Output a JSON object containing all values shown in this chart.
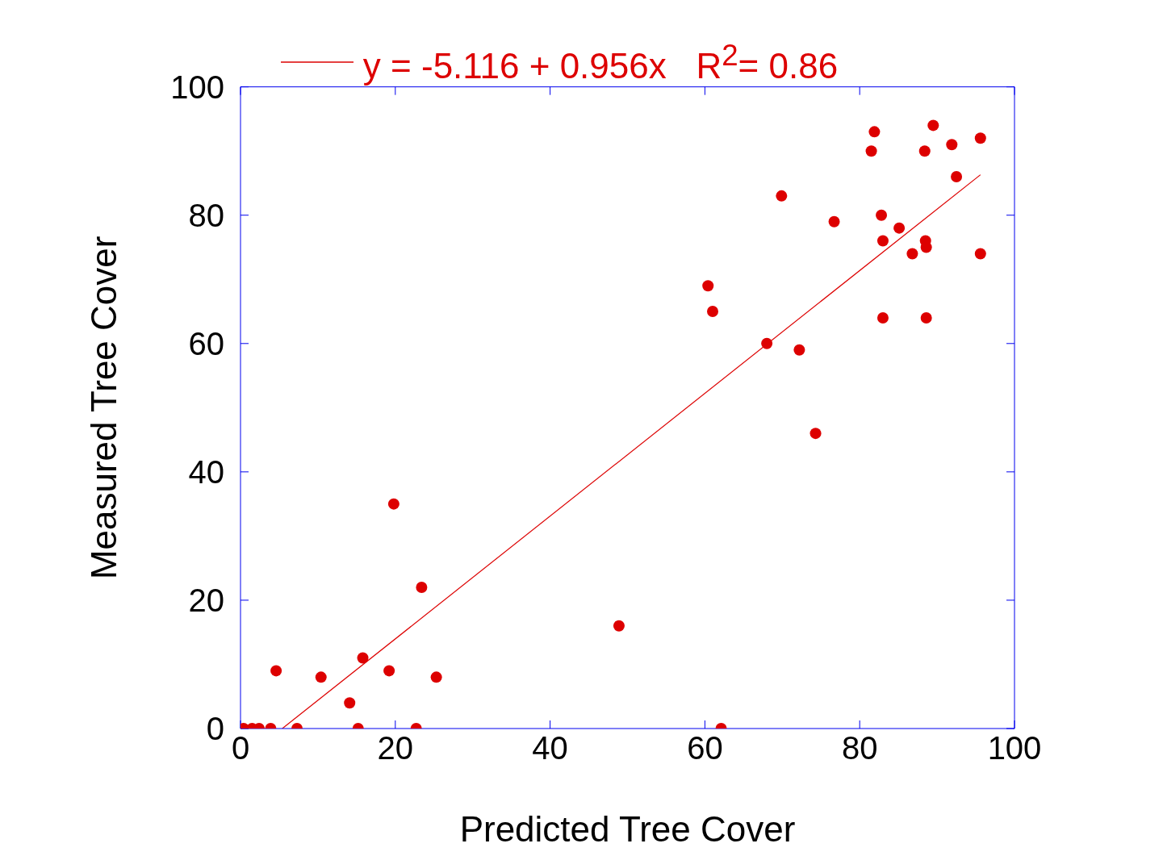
{
  "chart_data": {
    "type": "scatter",
    "xlabel": "Predicted Tree Cover",
    "ylabel": "Measured Tree Cover",
    "xlim": [
      0,
      100
    ],
    "ylim": [
      0,
      100
    ],
    "xticks": [
      0,
      20,
      40,
      60,
      80,
      100
    ],
    "yticks": [
      0,
      20,
      40,
      60,
      80,
      100
    ],
    "legend": "top",
    "marker": "circle",
    "series": [
      {
        "color": "#dd0000",
        "x": [
          0.4,
          1.5,
          2.4,
          3.9,
          4.6,
          7.3,
          10.4,
          14.1,
          15.2,
          15.8,
          19.2,
          19.8,
          22.7,
          23.4,
          25.3,
          48.9,
          60.4,
          61.0,
          62.1,
          68.0,
          69.9,
          72.2,
          74.3,
          76.7,
          81.5,
          81.9,
          82.8,
          83.0,
          83.0,
          85.1,
          86.8,
          88.4,
          88.5,
          88.6,
          88.6,
          89.5,
          91.9,
          92.5,
          95.6,
          95.6
        ],
        "values": [
          0,
          0,
          0,
          0,
          9,
          0,
          8,
          4,
          0,
          11,
          9,
          35,
          0,
          22,
          8,
          16,
          69,
          65,
          0,
          60,
          83,
          59,
          46,
          79,
          90,
          93,
          80,
          76,
          64,
          78,
          74,
          90,
          76,
          75,
          64,
          94,
          91,
          86,
          92,
          74
        ]
      },
      {
        "type": "line",
        "marker": "none",
        "name": "y = -5.116 + 0.956x   R$^{2}$= 0.86",
        "color": "#dd0000",
        "x": [
          5.4,
          95.6
        ],
        "values": [
          0,
          86.3
        ]
      }
    ]
  }
}
